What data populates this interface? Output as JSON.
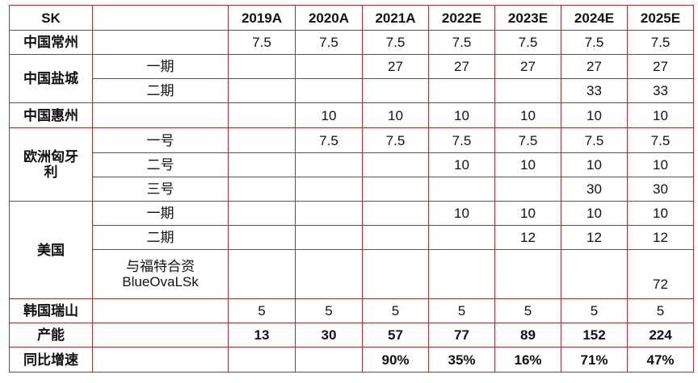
{
  "header": {
    "company": "SK",
    "years": [
      "2019A",
      "2020A",
      "2021A",
      "2022E",
      "2023E",
      "2024E",
      "2025E"
    ]
  },
  "rows": [
    {
      "region": "中国常州",
      "sub": "",
      "values": [
        "7.5",
        "7.5",
        "7.5",
        "7.5",
        "7.5",
        "7.5",
        "7.5"
      ]
    },
    {
      "region": "中国盐城",
      "sub": "一期",
      "values": [
        "",
        "",
        "27",
        "27",
        "27",
        "27",
        "27"
      ]
    },
    {
      "region": "",
      "sub": "二期",
      "values": [
        "",
        "",
        "",
        "",
        "",
        "33",
        "33"
      ]
    },
    {
      "region": "中国惠州",
      "sub": "",
      "values": [
        "",
        "10",
        "10",
        "10",
        "10",
        "10",
        "10"
      ]
    },
    {
      "region": "欧洲匈牙利",
      "sub": "一号",
      "values": [
        "",
        "7.5",
        "7.5",
        "7.5",
        "7.5",
        "7.5",
        "7.5"
      ]
    },
    {
      "region": "",
      "sub": "二号",
      "values": [
        "",
        "",
        "",
        "10",
        "10",
        "10",
        "10"
      ]
    },
    {
      "region": "",
      "sub": "三号",
      "values": [
        "",
        "",
        "",
        "",
        "",
        "30",
        "30"
      ]
    },
    {
      "region": "美国",
      "sub": "一期",
      "values": [
        "",
        "",
        "",
        "10",
        "10",
        "10",
        "10"
      ]
    },
    {
      "region": "",
      "sub": "二期",
      "values": [
        "",
        "",
        "",
        "",
        "12",
        "12",
        "12"
      ]
    },
    {
      "region": "",
      "sub": "与福特合资\nBlueOvaLSk",
      "values": [
        "",
        "",
        "",
        "",
        "",
        "",
        "72"
      ]
    },
    {
      "region": "韩国瑞山",
      "sub": "",
      "values": [
        "5",
        "5",
        "5",
        "5",
        "5",
        "5",
        "5"
      ]
    },
    {
      "region": "产能",
      "sub": "",
      "values": [
        "13",
        "30",
        "57",
        "77",
        "89",
        "152",
        "224"
      ]
    },
    {
      "region": "同比增速",
      "sub": "",
      "values": [
        "",
        "",
        "90%",
        "35%",
        "16%",
        "71%",
        "47%"
      ]
    }
  ],
  "colors": {
    "border": "#b5292f",
    "text": "#111111"
  }
}
